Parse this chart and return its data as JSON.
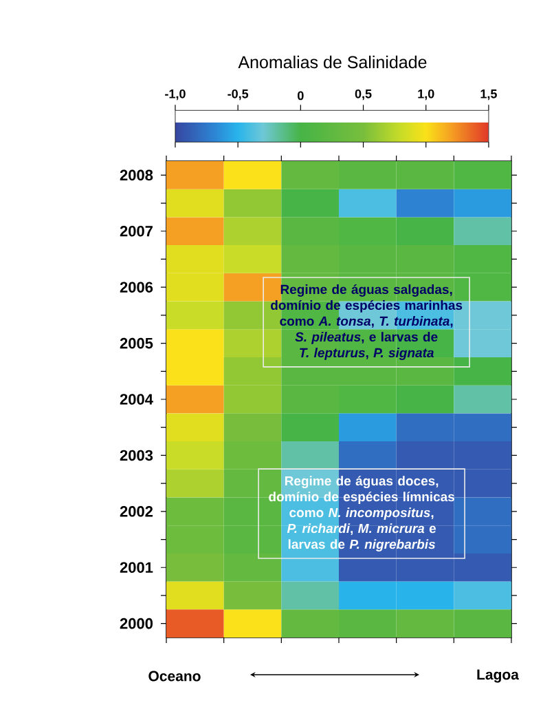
{
  "chart_data": {
    "type": "heatmap",
    "clabel": "Anomalias de Salinidade",
    "categories": [
      null,
      null,
      null,
      null,
      null,
      null
    ],
    "y_categories": [
      "2008",
      null,
      "2007",
      null,
      "2006",
      null,
      "2005",
      null,
      "2004",
      null,
      "2003",
      null,
      "2002",
      null,
      "2001",
      null,
      "2000"
    ],
    "cells": [
      [
        1.2,
        1.0,
        0.3,
        0.2,
        0.2,
        0.1
      ],
      [
        0.9,
        0.6,
        0.0,
        -0.4,
        -0.7,
        -0.6
      ],
      [
        1.2,
        0.7,
        0.2,
        0.1,
        0.0,
        -0.2
      ],
      [
        0.9,
        0.8,
        0.3,
        0.2,
        0.2,
        0.1
      ],
      [
        0.9,
        1.2,
        0.3,
        0.2,
        0.2,
        0.1
      ],
      [
        0.8,
        0.6,
        0.1,
        -0.3,
        -0.4,
        -0.3
      ],
      [
        1.0,
        0.7,
        0.2,
        0.1,
        0.0,
        -0.3
      ],
      [
        1.0,
        0.6,
        0.2,
        0.2,
        0.2,
        0.0
      ],
      [
        1.2,
        0.6,
        0.2,
        0.1,
        0.0,
        -0.2
      ],
      [
        0.9,
        0.5,
        0.0,
        -0.6,
        -0.8,
        -0.8
      ],
      [
        0.8,
        0.4,
        -0.2,
        -0.8,
        -0.9,
        -0.9
      ],
      [
        0.7,
        0.3,
        -0.3,
        -0.9,
        -0.9,
        -0.9
      ],
      [
        0.4,
        0.2,
        -0.4,
        -0.9,
        -0.9,
        -0.8
      ],
      [
        0.4,
        0.2,
        -0.4,
        -0.9,
        -0.9,
        -0.8
      ],
      [
        0.5,
        0.3,
        -0.4,
        -0.9,
        -0.9,
        -0.9
      ],
      [
        0.9,
        0.5,
        -0.2,
        -0.5,
        -0.5,
        -0.4
      ],
      [
        1.4,
        1.0,
        0.3,
        0.2,
        0.3,
        0.2
      ]
    ],
    "clim": [
      -1.0,
      1.5
    ],
    "cticks": [
      {
        "value": -1.0,
        "label": "-1,0"
      },
      {
        "value": -0.5,
        "label": "-0,5"
      },
      0,
      {
        "value": 0.5,
        "label": "0,5"
      },
      {
        "value": 1.0,
        "label": "1,0"
      },
      {
        "value": 1.5,
        "label": "1,5"
      }
    ],
    "annotations": [
      "Regime de águas salgadas, domínio de espécies marinhas como *A. tonsa*, *T. turbinata*, *S. pileatus*, e larvas de *T. lepturus*, *P. signata*",
      "Regime de águas doces, domínio de espécies límnicas como *N. incompositus*, *P. richardi*, *M. micrura* e larvas de *P. nigrebarbis*",
      "Oceano",
      "Lagoa"
    ]
  }
}
